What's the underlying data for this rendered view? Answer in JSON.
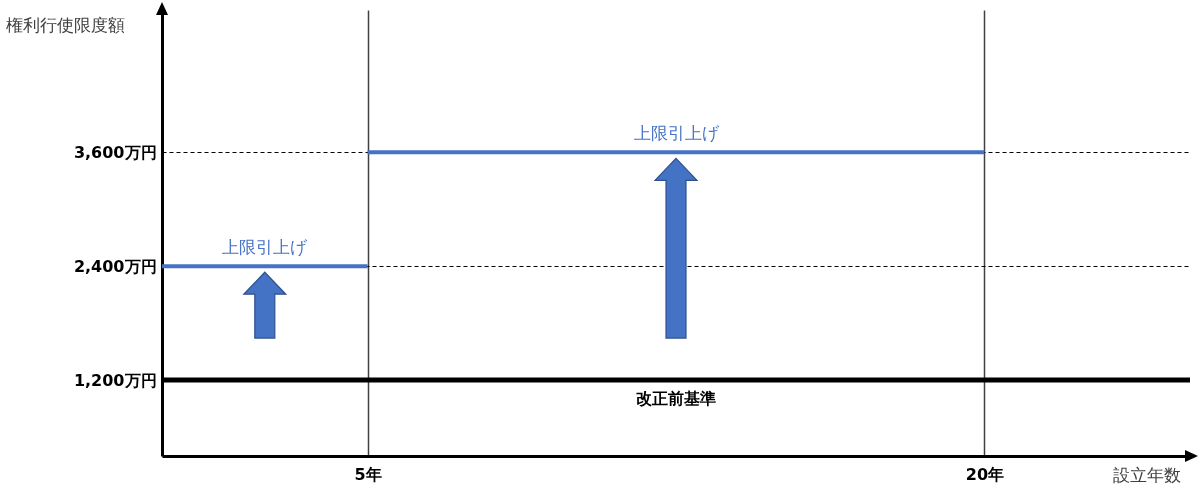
{
  "chart_data": {
    "type": "line",
    "ylabel": "権利行使限度額",
    "xlabel": "設立年数",
    "series": [
      {
        "color": "#4472c4",
        "x": [
          0,
          5
        ],
        "values": [
          2400,
          2400
        ]
      },
      {
        "color": "#4472c4",
        "x": [
          5,
          20
        ],
        "values": [
          3600,
          3600
        ]
      }
    ],
    "line_style": "solid",
    "xlim": [
      0,
      25
    ],
    "xticks": [
      {
        "value": 5,
        "label": "5年"
      },
      {
        "value": 20,
        "label": "20年"
      }
    ],
    "ylim": [
      400,
      5100
    ],
    "yticks": [
      {
        "value": 1200,
        "label": "1,200万円"
      },
      {
        "value": 2400,
        "label": "2,400万円"
      },
      {
        "value": 3600,
        "label": "3,600万円"
      }
    ],
    "grid": true,
    "ref_lines": [
      {
        "axis": "y",
        "value": 1200,
        "label": "改正前基準",
        "color": "#000000"
      }
    ],
    "annotations": [
      {
        "text": "上限引上げ",
        "x": 2.5,
        "y": 2400
      },
      {
        "text": "上限引上げ",
        "x": 12.5,
        "y": 3600
      }
    ]
  }
}
